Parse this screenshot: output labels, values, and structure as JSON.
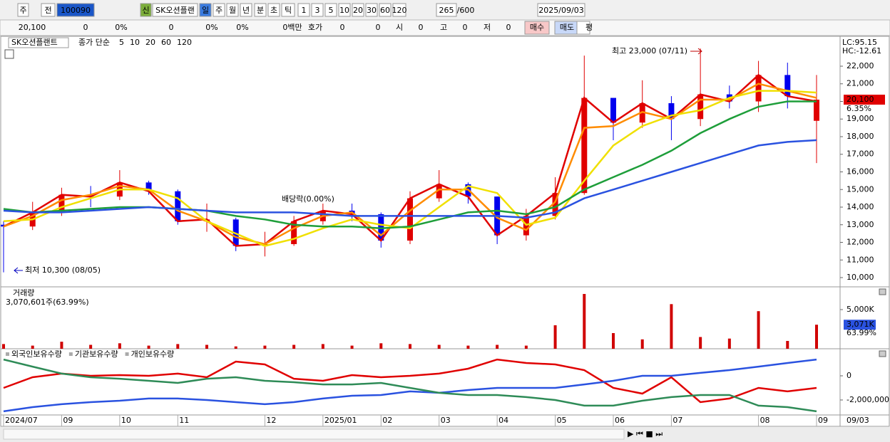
{
  "toolbar": [
    "주",
    "전",
    "100090",
    "신",
    "SK오션플랜",
    "일",
    "주",
    "월",
    "년",
    "분",
    "초",
    "틱",
    "1",
    "3",
    "5",
    "10",
    "20",
    "30",
    "60",
    "120",
    "265",
    "/600",
    "2025/09/03"
  ],
  "info_bar": [
    "20,100",
    "0",
    "0%",
    "0",
    "0%",
    "0%",
    "0백만",
    "호가",
    "0",
    "0",
    "시",
    "0",
    "고",
    "0",
    "저",
    "0",
    "매수",
    "매도",
    "평"
  ],
  "chart_data": [
    {
      "type": "candlestick",
      "name": "SK오션플랜트",
      "ma_label": "종가 단순",
      "open": [
        13000,
        12900,
        13700,
        14700,
        14600,
        15400,
        14900,
        13200,
        13300,
        11800,
        11900,
        13200,
        13800,
        13600,
        12100,
        14500,
        15300,
        14600,
        12400,
        13500,
        14800,
        20200,
        18800,
        19900,
        19000,
        20400,
        20000,
        21500,
        18900
      ],
      "high": [
        13200,
        14300,
        15100,
        15200,
        16100,
        15500,
        15000,
        14200,
        13400,
        12600,
        13500,
        14200,
        14200,
        13700,
        14900,
        16100,
        15400,
        14600,
        13900,
        15700,
        22600,
        20200,
        21200,
        20300,
        23000,
        20900,
        22300,
        22200,
        21500
      ],
      "low": [
        10300,
        12700,
        13500,
        14000,
        14400,
        14700,
        13000,
        12600,
        11500,
        11200,
        11800,
        13000,
        13200,
        11700,
        11900,
        14300,
        14200,
        11900,
        12100,
        13300,
        14700,
        17800,
        18500,
        17800,
        18600,
        19600,
        19400,
        19600,
        16500
      ],
      "close": [
        12900,
        13700,
        14700,
        14600,
        15400,
        14900,
        13200,
        13300,
        11800,
        11900,
        13200,
        13800,
        13600,
        12100,
        14500,
        15300,
        14600,
        12400,
        13500,
        14800,
        20200,
        18800,
        19900,
        19000,
        20400,
        20000,
        21500,
        20300,
        20100
      ],
      "up_color": "#e00000",
      "down_color": "#0000ee",
      "series": [
        {
          "name": "5",
          "color": "#e00000",
          "values": [
            12900,
            13700,
            14700,
            14600,
            15400,
            14900,
            13200,
            13300,
            11800,
            11900,
            13200,
            13800,
            13600,
            12100,
            14500,
            15300,
            14600,
            12400,
            13500,
            14800,
            20200,
            18800,
            19900,
            19000,
            20400,
            20000,
            21500,
            20300,
            20000
          ]
        },
        {
          "name": "10",
          "color": "#ff8c00",
          "values": [
            12900,
            13500,
            14400,
            14700,
            15200,
            15000,
            13800,
            13200,
            12300,
            11900,
            12800,
            13500,
            13700,
            12400,
            13800,
            15000,
            15000,
            13400,
            12700,
            14300,
            18500,
            18600,
            19400,
            19000,
            20100,
            20100,
            21000,
            20600,
            20200
          ]
        },
        {
          "name": "20",
          "color": "#f0e000",
          "values": [
            13200,
            13300,
            14000,
            14500,
            15000,
            15000,
            14500,
            13200,
            12500,
            11800,
            12200,
            12800,
            13300,
            13000,
            12800,
            14000,
            15200,
            14800,
            13000,
            13400,
            15500,
            17500,
            18600,
            19200,
            19500,
            20200,
            20600,
            20600,
            20500
          ]
        },
        {
          "name": "60",
          "color": "#1e9e3a",
          "values": [
            13900,
            13700,
            13800,
            13900,
            14000,
            14000,
            13900,
            13800,
            13500,
            13300,
            13000,
            12900,
            12900,
            12800,
            12900,
            13300,
            13700,
            13800,
            13600,
            14000,
            15000,
            15700,
            16400,
            17200,
            18200,
            19000,
            19700,
            20000,
            20000
          ]
        },
        {
          "name": "120",
          "color": "#2a52e0",
          "values": [
            13800,
            13700,
            13700,
            13800,
            13900,
            14000,
            13900,
            13800,
            13700,
            13700,
            13700,
            13600,
            13500,
            13500,
            13500,
            13500,
            13500,
            13500,
            13400,
            13700,
            14500,
            15000,
            15500,
            16000,
            16500,
            17000,
            17500,
            17700,
            17800
          ]
        }
      ],
      "annotations": [
        "최고 23,000 (07/11)",
        "최저 10,300 (08/05)",
        "배당락(0.00%)"
      ],
      "lc_label": "LC:95.15",
      "hc_label": "HC:-12.61",
      "last_price_label": "20,100",
      "change_label": "6.35%",
      "ylim": [
        9475,
        23535
      ],
      "yticks": [
        {
          "value": 10000,
          "label": "10,000"
        },
        {
          "value": 11000,
          "label": "11,000"
        },
        {
          "value": 12000,
          "label": "12,000"
        },
        {
          "value": 13000,
          "label": "13,000"
        },
        {
          "value": 14000,
          "label": "14,000"
        },
        {
          "value": 15000,
          "label": "15,000"
        },
        {
          "value": 16000,
          "label": "16,000"
        },
        {
          "value": 17000,
          "label": "17,000"
        },
        {
          "value": 18000,
          "label": "18,000"
        },
        {
          "value": 19000,
          "label": "19,000"
        },
        {
          "value": 20000,
          "label": "20,000"
        },
        {
          "value": 21000,
          "label": "21,000"
        },
        {
          "value": 22000,
          "label": "22,000"
        }
      ]
    },
    {
      "type": "bar",
      "title": "거래량",
      "subtitle": "3,070,601주(63.99%)",
      "color": "#d00000",
      "values": [
        600,
        400,
        900,
        500,
        700,
        400,
        600,
        500,
        300,
        400,
        500,
        600,
        400,
        700,
        600,
        500,
        400,
        500,
        400,
        3000,
        7000,
        2000,
        1200,
        5700,
        1500,
        1300,
        4800,
        1000,
        3071
      ],
      "value_labels": [
        null,
        null,
        null,
        null,
        null,
        null,
        null,
        null,
        null,
        null,
        null,
        null,
        null,
        null,
        null,
        null,
        null,
        null,
        null,
        null,
        null,
        null,
        null,
        null,
        null,
        null,
        null,
        null,
        "3,071K"
      ],
      "ratio_label": "63.99%",
      "ylim": [
        0,
        7727
      ],
      "yticks": [
        {
          "value": 5000,
          "label": "5,000K"
        }
      ]
    },
    {
      "type": "line",
      "categories": [
        "2024/07",
        null,
        "09",
        null,
        "10",
        null,
        "11",
        null,
        null,
        "12",
        null,
        "2025/01",
        null,
        "02",
        null,
        "03",
        null,
        "04",
        null,
        "05",
        null,
        "06",
        null,
        "07",
        null,
        null,
        "08",
        null,
        "09"
      ],
      "cursor_date": "09/03",
      "series": [
        {
          "name": "외국인보유수량",
          "color": "#e00000",
          "values": [
            -1000000,
            -120000,
            180000,
            0,
            60000,
            0,
            180000,
            -120000,
            1180000,
            940000,
            -240000,
            -410000,
            60000,
            -120000,
            0,
            180000,
            590000,
            1350000,
            1060000,
            940000,
            470000,
            -1000000,
            -1470000,
            -120000,
            -2180000,
            -1880000,
            -1000000,
            -1290000,
            -1000000
          ]
        },
        {
          "name": "기관보유수량",
          "color": "#2a52e0",
          "values": [
            -2940000,
            -2590000,
            -2350000,
            -2180000,
            -2060000,
            -1880000,
            -1880000,
            -2000000,
            -2180000,
            -2350000,
            -2180000,
            -1880000,
            -1650000,
            -1590000,
            -1290000,
            -1410000,
            -1180000,
            -1000000,
            -1000000,
            -1000000,
            -710000,
            -410000,
            0,
            0,
            240000,
            470000,
            760000,
            1060000,
            1350000
          ]
        },
        {
          "name": "개인보유수량",
          "color": "#2e8b57",
          "values": [
            1350000,
            760000,
            180000,
            -120000,
            -240000,
            -410000,
            -590000,
            -240000,
            -120000,
            -410000,
            -530000,
            -710000,
            -710000,
            -590000,
            -1000000,
            -1410000,
            -1590000,
            -1590000,
            -1760000,
            -2000000,
            -2470000,
            -2470000,
            -2060000,
            -1760000,
            -1590000,
            -1590000,
            -2470000,
            -2590000,
            -2940000
          ]
        }
      ],
      "ylim": [
        -3180000,
        2120000
      ],
      "yticks": [
        0,
        {
          "value": -2000000,
          "label": "-2,000,000"
        }
      ]
    }
  ]
}
